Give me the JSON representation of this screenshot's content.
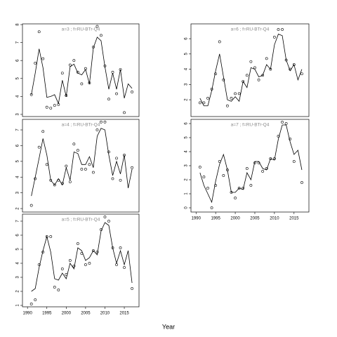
{
  "xlabel": "Year",
  "chart_data": [
    {
      "type": "line",
      "title": "a=3 ; f=RU-BTr-Q4",
      "x": [
        1991,
        1992,
        1993,
        1994,
        1995,
        1996,
        1997,
        1998,
        1999,
        2000,
        2001,
        2002,
        2003,
        2004,
        2005,
        2006,
        2007,
        2008,
        2009,
        2010,
        2011,
        2012,
        2013,
        2014,
        2015,
        2016,
        2017
      ],
      "xlim": [
        1988.7,
        2018.8
      ],
      "ylim": [
        2.88,
        8.04
      ],
      "yticks": [
        3,
        4,
        5,
        6,
        7,
        8
      ],
      "series": [
        {
          "style": "line",
          "color": "#000000",
          "values": [
            4.1,
            5.3,
            6.65,
            5.6,
            3.95,
            4.0,
            4.1,
            3.6,
            4.9,
            4.0,
            5.65,
            5.8,
            5.3,
            5.2,
            5.5,
            4.7,
            6.7,
            7.3,
            7.1,
            5.65,
            4.4,
            5.3,
            4.4,
            5.5,
            3.9,
            4.7,
            4.45
          ]
        },
        {
          "style": "points",
          "color": "#000000",
          "values": [
            4.1,
            5.85,
            7.6,
            6.1,
            3.4,
            3.35,
            3.5,
            3.55,
            5.3,
            4.05,
            5.75,
            6.0,
            5.35,
            4.7,
            5.55,
            4.75,
            6.75,
            7.9,
            7.4,
            5.7,
            3.85,
            5.35,
            4.15,
            5.5,
            3.1,
            null,
            4.25
          ]
        }
      ]
    },
    {
      "type": "line",
      "title": "a=4 ; f=RU-BTr-Q4",
      "x": [
        1991,
        1992,
        1993,
        1994,
        1995,
        1996,
        1997,
        1998,
        1999,
        2000,
        2001,
        2002,
        2003,
        2004,
        2005,
        2006,
        2007,
        2008,
        2009,
        2010,
        2011,
        2012,
        2013,
        2014,
        2015,
        2016,
        2017
      ],
      "xlim": [
        1988.7,
        2018.8
      ],
      "ylim": [
        1.78,
        7.67
      ],
      "yticks": [
        2,
        3,
        4,
        5,
        6,
        7
      ],
      "series": [
        {
          "style": "line",
          "color": "#000000",
          "values": [
            2.8,
            4.0,
            5.2,
            6.45,
            5.4,
            3.8,
            3.5,
            3.9,
            3.5,
            4.6,
            3.8,
            5.6,
            5.5,
            4.8,
            4.8,
            5.3,
            4.6,
            6.6,
            7.1,
            7.0,
            5.4,
            4.1,
            5.0,
            4.2,
            5.4,
            3.3,
            4.5
          ]
        },
        {
          "style": "points",
          "color": "#000000",
          "values": [
            2.2,
            3.9,
            5.9,
            6.9,
            4.8,
            3.8,
            3.5,
            3.8,
            3.6,
            4.7,
            3.7,
            6.1,
            5.7,
            4.5,
            4.5,
            4.8,
            4.3,
            7.0,
            7.5,
            7.5,
            5.6,
            3.9,
            5.2,
            3.8,
            5.4,
            null,
            4.6
          ]
        }
      ]
    },
    {
      "type": "line",
      "title": "a=5 ; f=RU-BTr-Q4",
      "x": [
        1991,
        1992,
        1993,
        1994,
        1995,
        1996,
        1997,
        1998,
        1999,
        2000,
        2001,
        2002,
        2003,
        2004,
        2005,
        2006,
        2007,
        2008,
        2009,
        2010,
        2011,
        2012,
        2013,
        2014,
        2015,
        2016,
        2017
      ],
      "xlim": [
        1988.7,
        2018.8
      ],
      "ylim": [
        0.9,
        7.5
      ],
      "yticks": [
        1,
        2,
        3,
        4,
        5,
        6,
        7
      ],
      "xticks": [
        1990,
        1995,
        2000,
        2005,
        2010,
        2015
      ],
      "series": [
        {
          "style": "line",
          "color": "#000000",
          "values": [
            2.0,
            2.2,
            3.7,
            4.9,
            5.9,
            4.8,
            2.9,
            2.8,
            3.3,
            2.9,
            4.0,
            3.6,
            5.1,
            4.9,
            4.2,
            4.4,
            4.9,
            4.6,
            6.3,
            6.9,
            6.7,
            5.1,
            4.0,
            4.9,
            3.9,
            4.9,
            2.6
          ]
        },
        {
          "style": "points",
          "color": "#000000",
          "values": [
            1.1,
            1.4,
            3.9,
            4.8,
            5.9,
            5.9,
            2.3,
            2.1,
            3.6,
            3.2,
            4.2,
            3.8,
            5.4,
            4.7,
            3.9,
            4.0,
            4.9,
            4.8,
            6.4,
            7.3,
            7.0,
            5.1,
            3.9,
            5.1,
            3.7,
            null,
            2.2
          ]
        }
      ]
    },
    {
      "type": "line",
      "title": "a=6 ; f=RU-BTr-Q4",
      "x": [
        1991,
        1992,
        1993,
        1994,
        1995,
        1996,
        1997,
        1998,
        1999,
        2000,
        2001,
        2002,
        2003,
        2004,
        2005,
        2006,
        2007,
        2008,
        2009,
        2010,
        2011,
        2012,
        2013,
        2014,
        2015,
        2016,
        2017
      ],
      "xlim": [
        1988.7,
        2018.8
      ],
      "ylim": [
        0.9,
        6.97
      ],
      "yticks": [
        2,
        3,
        4,
        5,
        6
      ],
      "series": [
        {
          "style": "line",
          "color": "#000000",
          "values": [
            2.1,
            1.6,
            1.6,
            2.6,
            3.9,
            5.0,
            3.5,
            2.0,
            1.9,
            2.2,
            1.9,
            3.2,
            2.8,
            4.1,
            4.0,
            3.5,
            3.6,
            4.3,
            4.0,
            5.6,
            6.3,
            6.2,
            4.6,
            3.9,
            4.3,
            3.3,
            4.0
          ]
        },
        {
          "style": "points",
          "color": "#000000",
          "values": [
            1.8,
            1.8,
            2.1,
            2.7,
            3.7,
            5.8,
            3.3,
            1.6,
            2.1,
            2.4,
            2.4,
            3.2,
            3.6,
            4.5,
            4.1,
            3.3,
            3.6,
            4.7,
            4.0,
            6.1,
            6.6,
            6.6,
            4.6,
            4.0,
            4.3,
            null,
            3.7
          ]
        }
      ]
    },
    {
      "type": "line",
      "title": "a=7 ; f=RU-BTr-Q4",
      "x": [
        1991,
        1992,
        1993,
        1994,
        1995,
        1996,
        1997,
        1998,
        1999,
        2000,
        2001,
        2002,
        2003,
        2004,
        2005,
        2006,
        2007,
        2008,
        2009,
        2010,
        2011,
        2012,
        2013,
        2014,
        2015,
        2016,
        2017
      ],
      "xlim": [
        1988.7,
        2018.8
      ],
      "ylim": [
        -0.3,
        6.3
      ],
      "yticks": [
        0,
        1,
        2,
        3,
        4,
        5,
        6
      ],
      "xticks": [
        1990,
        1995,
        2000,
        2005,
        2010,
        2015
      ],
      "series": [
        {
          "style": "line",
          "color": "#000000",
          "values": [
            2.5,
            1.6,
            1.0,
            0.4,
            1.9,
            3.1,
            3.8,
            2.7,
            1.1,
            1.1,
            1.4,
            1.3,
            2.5,
            2.0,
            3.3,
            3.3,
            2.8,
            2.7,
            3.5,
            3.4,
            4.9,
            5.9,
            5.9,
            4.7,
            3.8,
            4.1,
            2.7
          ]
        },
        {
          "style": "points",
          "color": "#000000",
          "values": [
            2.9,
            2.2,
            1.4,
            0.0,
            1.6,
            3.3,
            2.3,
            2.7,
            1.1,
            0.7,
            1.4,
            1.4,
            2.8,
            1.6,
            3.2,
            3.2,
            2.6,
            2.8,
            3.5,
            3.5,
            5.1,
            6.1,
            6.0,
            4.9,
            3.3,
            null,
            1.8
          ]
        }
      ]
    }
  ]
}
